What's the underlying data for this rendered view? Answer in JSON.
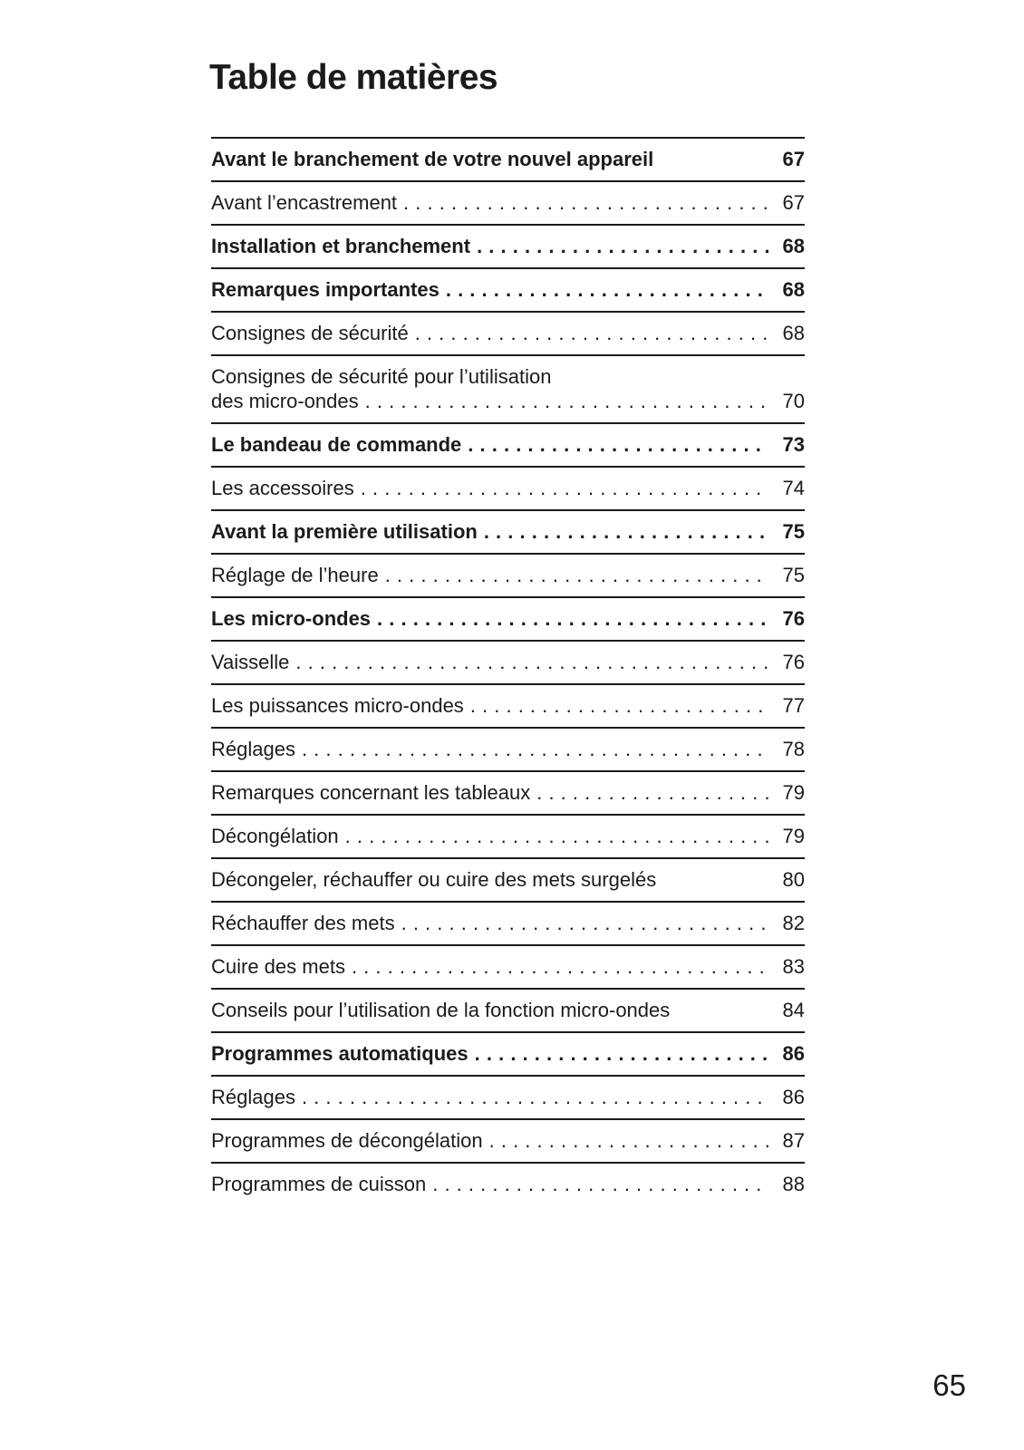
{
  "page": {
    "title": "Table de matières",
    "footer_page_number": "65",
    "text_color": "#1d1b1a",
    "background_color": "#ffffff"
  },
  "toc": {
    "rows": [
      {
        "label": "Avant le branchement de votre nouvel appareil",
        "page": "67",
        "bold": true,
        "dots": false
      },
      {
        "label": "Avant l’encastrement",
        "page": "67",
        "bold": false,
        "dots": true
      },
      {
        "label": "Installation et branchement",
        "page": "68",
        "bold": true,
        "dots": true
      },
      {
        "label": "Remarques importantes",
        "page": "68",
        "bold": true,
        "dots": true
      },
      {
        "label": "Consignes de sécurité",
        "page": "68",
        "bold": false,
        "dots": true
      },
      {
        "label_line1": "Consignes de sécurité pour l’utilisation",
        "label": "des micro-ondes",
        "page": "70",
        "bold": false,
        "dots": true
      },
      {
        "label": "Le bandeau de commande",
        "page": "73",
        "bold": true,
        "dots": true
      },
      {
        "label": "Les accessoires",
        "page": "74",
        "bold": false,
        "dots": true
      },
      {
        "label": "Avant la première utilisation",
        "page": "75",
        "bold": true,
        "dots": true
      },
      {
        "label": "Réglage de l’heure",
        "page": "75",
        "bold": false,
        "dots": true
      },
      {
        "label": "Les micro-ondes",
        "page": "76",
        "bold": true,
        "dots": true
      },
      {
        "label": "Vaisselle",
        "page": "76",
        "bold": false,
        "dots": true
      },
      {
        "label": "Les puissances micro-ondes",
        "page": "77",
        "bold": false,
        "dots": true
      },
      {
        "label": "Réglages",
        "page": "78",
        "bold": false,
        "dots": true
      },
      {
        "label": "Remarques concernant les tableaux",
        "page": "79",
        "bold": false,
        "dots": true
      },
      {
        "label": "Décongélation",
        "page": "79",
        "bold": false,
        "dots": true
      },
      {
        "label": "Décongeler, réchauffer ou cuire des mets surgelés",
        "page": "80",
        "bold": false,
        "dots": false
      },
      {
        "label": "Réchauffer des mets",
        "page": "82",
        "bold": false,
        "dots": true
      },
      {
        "label": "Cuire des mets",
        "page": "83",
        "bold": false,
        "dots": true
      },
      {
        "label": "Conseils pour l’utilisation de la fonction micro-ondes",
        "page": "84",
        "bold": false,
        "dots": false
      },
      {
        "label": "Programmes automatiques",
        "page": "86",
        "bold": true,
        "dots": true
      },
      {
        "label": "Réglages",
        "page": "86",
        "bold": false,
        "dots": true
      },
      {
        "label": "Programmes de décongélation",
        "page": "87",
        "bold": false,
        "dots": true
      },
      {
        "label": "Programmes de cuisson",
        "page": "88",
        "bold": false,
        "dots": true
      }
    ]
  }
}
